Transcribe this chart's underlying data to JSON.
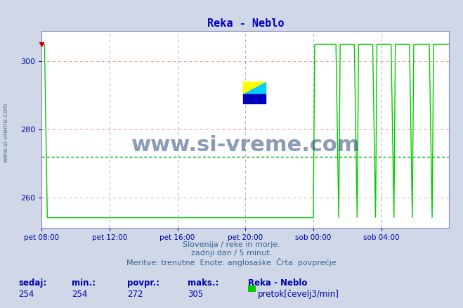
{
  "title": "Reka - Neblo",
  "title_color": "#0000cc",
  "bg_color": "#d0d8e8",
  "plot_bg_color": "#ffffff",
  "line_color": "#00cc00",
  "avg_line_color": "#00aa00",
  "grid_color_red": "#ff9999",
  "grid_color_blue": "#aaaacc",
  "axis_color": "#0000aa",
  "yticks": [
    260,
    280,
    300
  ],
  "ymin": 251,
  "ymax": 309,
  "avg_value": 272,
  "min_value": 254,
  "max_value": 305,
  "current_value": 254,
  "xtick_labels": [
    "pet 08:00",
    "pet 12:00",
    "pet 16:00",
    "pet 20:00",
    "sob 00:00",
    "sob 04:00"
  ],
  "xlabel_line1": "Slovenija / reke in morje.",
  "xlabel_line2": "zadnji dan / 5 minut.",
  "xlabel_line3": "Meritve: trenutne  Enote: anglosaške  Črta: povprečje",
  "legend_title": "Reka - Neblo",
  "legend_label": "pretok[čevelj3/min]",
  "stat_labels": [
    "sedaj:",
    "min.:",
    "povpr.:",
    "maks.:"
  ],
  "stat_values": [
    254,
    254,
    272,
    305
  ],
  "watermark": "www.si-vreme.com",
  "watermark_color": "#1a3a6e",
  "left_label": "www.si-vreme.com",
  "left_label_color": "#1a3a6e"
}
